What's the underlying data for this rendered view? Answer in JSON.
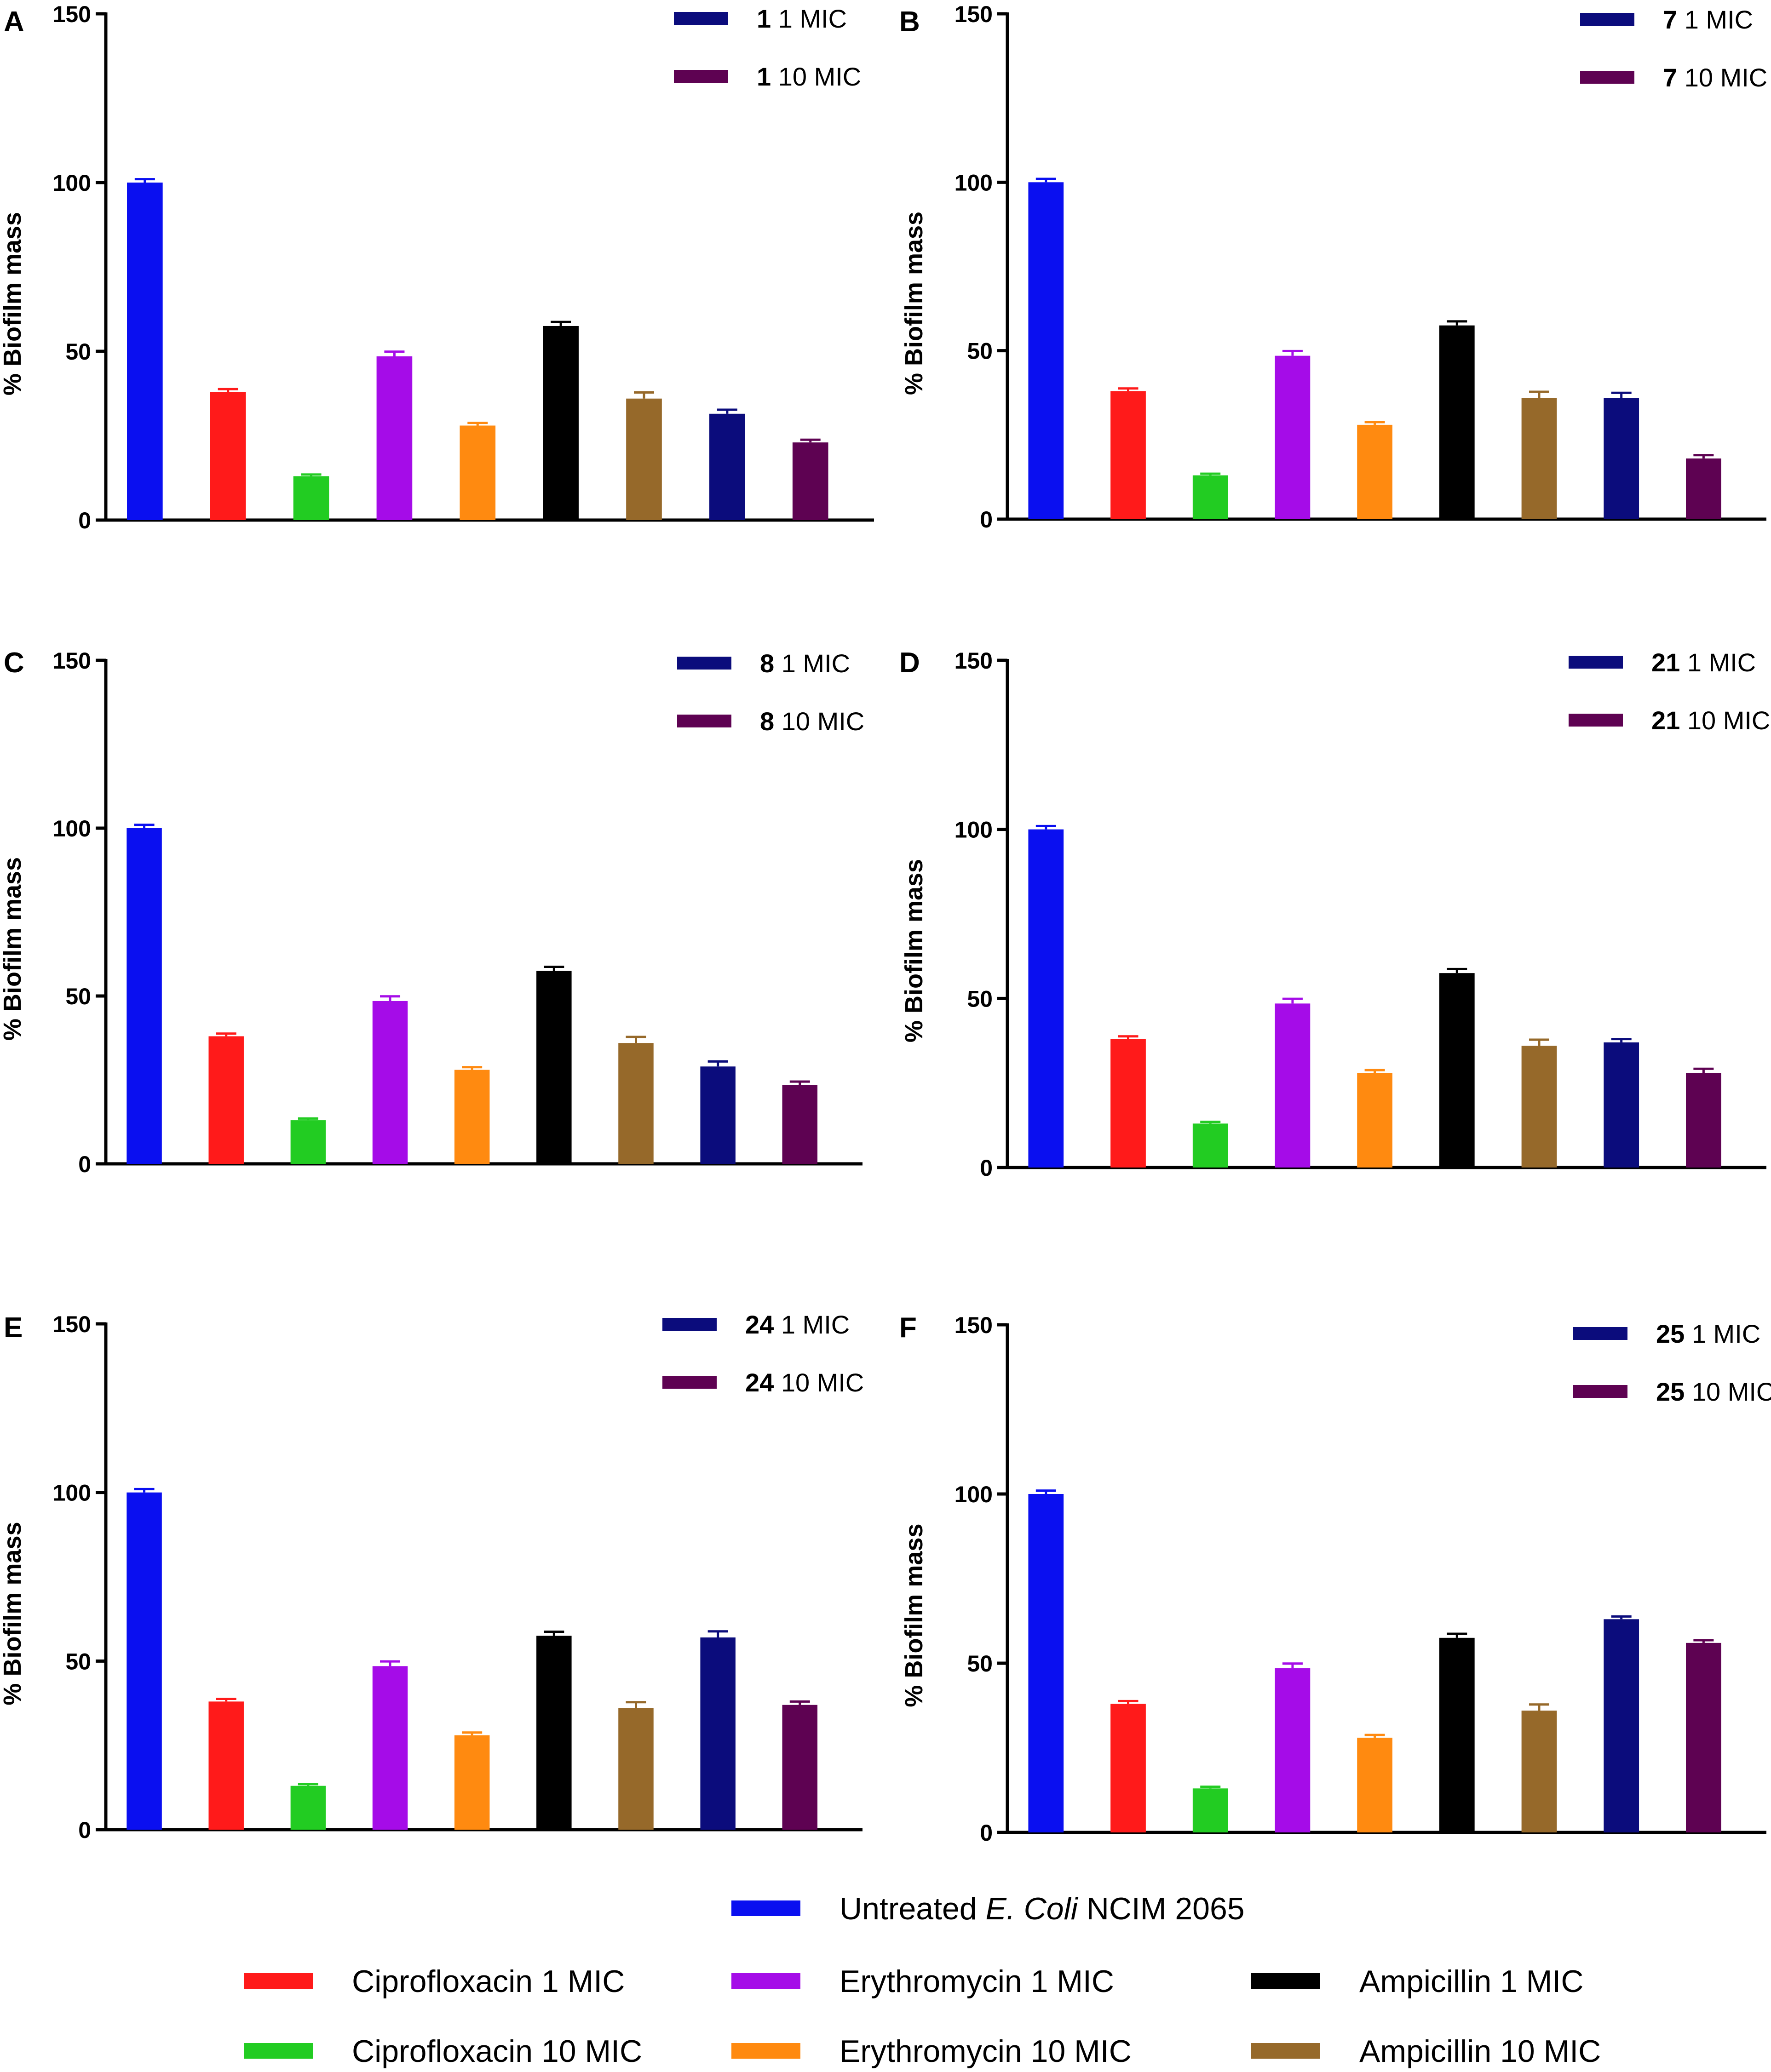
{
  "chart_data": {
    "type": "bar",
    "categories": [
      "Untreated E. Coli NCIM 2065",
      "Ciprofloxacin 1 MIC",
      "Ciprofloxacin 10 MIC",
      "Erythromycin 1 MIC",
      "Erythromycin 10 MIC",
      "Ampicillin 1 MIC",
      "Ampicillin 10 MIC",
      "Compound 1 MIC",
      "Compound 10 MIC"
    ],
    "colors": [
      "#0a0ff0",
      "#ff1a1a",
      "#22cc22",
      "#a50ce8",
      "#ff8a10",
      "#000000",
      "#96692a",
      "#0b0c7c",
      "#5e0252"
    ],
    "ylabel": "% Biofilm mass",
    "ylim": [
      0,
      150
    ],
    "yticks": [
      0,
      50,
      100,
      150
    ],
    "panels": [
      {
        "label": "A",
        "compound": "1",
        "legend": [
          "1 MIC",
          "10 MIC"
        ],
        "values": [
          100,
          38,
          13,
          48.5,
          28,
          57.5,
          36,
          31.5,
          23
        ],
        "errors": [
          1,
          0.8,
          0.5,
          1.4,
          0.8,
          1.2,
          1.8,
          1.2,
          0.8
        ]
      },
      {
        "label": "B",
        "compound": "7",
        "legend": [
          "1 MIC",
          "10 MIC"
        ],
        "values": [
          100,
          38,
          13,
          48.5,
          28,
          57.5,
          36,
          36,
          18
        ],
        "errors": [
          1,
          0.8,
          0.5,
          1.4,
          0.8,
          1.2,
          1.8,
          1.5,
          1
        ]
      },
      {
        "label": "C",
        "compound": "8",
        "legend": [
          "1 MIC",
          "10 MIC"
        ],
        "values": [
          100,
          38,
          13,
          48.5,
          28,
          57.5,
          36,
          29,
          23.5
        ],
        "errors": [
          1,
          0.8,
          0.5,
          1.4,
          0.8,
          1.2,
          1.8,
          1.5,
          1
        ]
      },
      {
        "label": "D",
        "compound": "21",
        "legend": [
          "1 MIC",
          "10 MIC"
        ],
        "values": [
          100,
          38,
          13,
          48.5,
          28,
          57.5,
          36,
          37,
          28
        ],
        "errors": [
          1,
          0.8,
          0.5,
          1.4,
          0.8,
          1.2,
          1.8,
          1,
          1.2
        ]
      },
      {
        "label": "E",
        "compound": "24",
        "legend": [
          "1 MIC",
          "10 MIC"
        ],
        "values": [
          100,
          38,
          13,
          48.5,
          28,
          57.5,
          36,
          57,
          37
        ],
        "errors": [
          1,
          0.8,
          0.5,
          1.4,
          0.8,
          1.2,
          1.8,
          1.8,
          1
        ]
      },
      {
        "label": "F",
        "compound": "25",
        "legend": [
          "1 MIC",
          "10 MIC"
        ],
        "values": [
          100,
          38,
          13,
          48.5,
          28,
          57.5,
          36,
          63,
          56
        ],
        "errors": [
          1,
          0.8,
          0.5,
          1.4,
          0.8,
          1.2,
          1.8,
          0.8,
          0.8
        ]
      }
    ],
    "legend_title": {
      "prefix": "Untreated ",
      "italic": "E. Coli",
      "suffix": " NCIM 2065"
    }
  }
}
